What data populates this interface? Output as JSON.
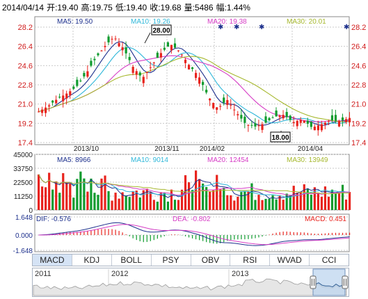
{
  "header": {
    "date": "2014/04/14",
    "open": "开:19.40",
    "high": "高:19.75",
    "low": "低:19.40",
    "close": "收:19.68",
    "volume": "量:5486",
    "change": "幅:1.44%"
  },
  "price_panel": {
    "ma5": "MA5: 19.50",
    "ma10": "MA10: 19.26",
    "ma20": "MA20: 19.38",
    "ma30": "MA30: 20.01",
    "left_ticks": [
      "28.2",
      "26.4",
      "24.6",
      "22.8",
      "21.0",
      "19.2",
      "17.4"
    ],
    "right_ticks": [
      "28.2",
      "26.4",
      "24.6",
      "22.8",
      "21.0",
      "19.2",
      "17.4"
    ],
    "date_labels": [
      "2013/10",
      "2013/11",
      "2014/02",
      "2014/04"
    ],
    "high_marker": "28.00",
    "low_marker": "18.00"
  },
  "volume_panel": {
    "ma5": "MA5: 8966",
    "ma10": "MA10: 9014",
    "ma20": "MA20: 12454",
    "ma30": "MA30: 13949",
    "ticks": [
      "45000",
      "33750",
      "22500",
      "11250",
      "0"
    ]
  },
  "macd_panel": {
    "dif": "DIF: -0.576",
    "dea": "DEA: -0.802",
    "macd": "MACD: 0.451",
    "ticks": [
      "1.648",
      "0.000",
      "-1.648"
    ]
  },
  "tabs": [
    "MACD",
    "KDJ",
    "BOLL",
    "PSY",
    "OBV",
    "RSI",
    "WVAD",
    "CCI"
  ],
  "navigator": {
    "years": [
      "2011",
      "2012",
      "2013"
    ]
  },
  "colors": {
    "up": "#e8231d",
    "down": "#0f9b2e",
    "ma5": "#1c2f8c",
    "ma10": "#2fb7d9",
    "ma20": "#d63cc5",
    "ma30": "#a6b82e",
    "grid": "#c9c9c9"
  }
}
